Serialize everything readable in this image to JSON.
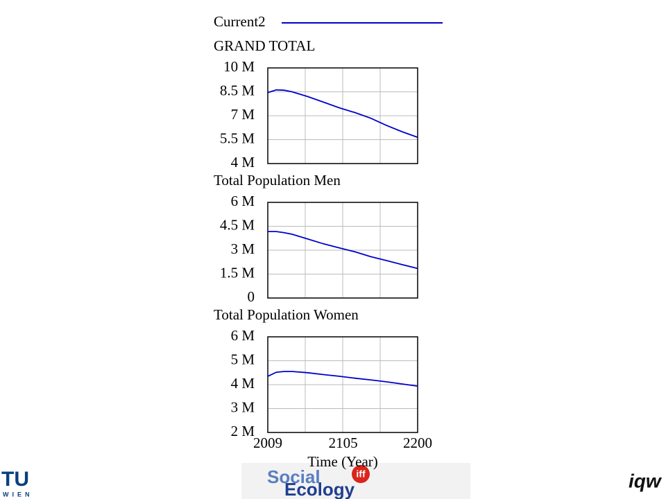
{
  "chart_data": [
    {
      "type": "line",
      "title": "GRAND TOTAL",
      "x": [
        2009,
        2020,
        2030,
        2040,
        2060,
        2080,
        2100,
        2120,
        2140,
        2160,
        2180,
        2200
      ],
      "series": [
        {
          "name": "Current2",
          "color": "#0000cc",
          "values": [
            8450000,
            8620000,
            8600000,
            8500000,
            8200000,
            7850000,
            7500000,
            7200000,
            6850000,
            6400000,
            6000000,
            5650000
          ]
        }
      ],
      "xlim": [
        2009,
        2200
      ],
      "ylim": [
        4000000,
        10000000
      ],
      "yticks": [
        {
          "value": 4000000,
          "label": "4 M"
        },
        {
          "value": 5500000,
          "label": "5.5 M"
        },
        {
          "value": 7000000,
          "label": "7 M"
        },
        {
          "value": 8500000,
          "label": "8.5 M"
        },
        {
          "value": 10000000,
          "label": "10 M"
        }
      ],
      "grid": true
    },
    {
      "type": "line",
      "title": "Total Population Men",
      "x": [
        2009,
        2020,
        2030,
        2040,
        2060,
        2080,
        2100,
        2120,
        2140,
        2160,
        2180,
        2200
      ],
      "series": [
        {
          "color": "#0000cc",
          "values": [
            4170000,
            4170000,
            4100000,
            4000000,
            3700000,
            3400000,
            3150000,
            2900000,
            2600000,
            2350000,
            2100000,
            1850000
          ]
        }
      ],
      "xlim": [
        2009,
        2200
      ],
      "ylim": [
        0,
        6000000
      ],
      "yticks": [
        0,
        {
          "value": 1500000,
          "label": "1.5 M"
        },
        {
          "value": 3000000,
          "label": "3 M"
        },
        {
          "value": 4500000,
          "label": "4.5 M"
        },
        {
          "value": 6000000,
          "label": "6 M"
        }
      ],
      "grid": true
    },
    {
      "type": "line",
      "title": "Total Population Women",
      "x": [
        2009,
        2020,
        2030,
        2040,
        2060,
        2080,
        2100,
        2120,
        2140,
        2160,
        2180,
        2200
      ],
      "series": [
        {
          "color": "#0000cc",
          "values": [
            4350000,
            4520000,
            4550000,
            4550000,
            4500000,
            4420000,
            4350000,
            4270000,
            4200000,
            4120000,
            4030000,
            3940000
          ]
        }
      ],
      "xlim": [
        2009,
        2200
      ],
      "ylim": [
        2000000,
        6000000
      ],
      "yticks": [
        {
          "value": 2000000,
          "label": "2 M"
        },
        {
          "value": 3000000,
          "label": "3 M"
        },
        {
          "value": 4000000,
          "label": "4 M"
        },
        {
          "value": 5000000,
          "label": "5 M"
        },
        {
          "value": 6000000,
          "label": "6 M"
        }
      ],
      "xticks": [
        2009,
        2105,
        2200
      ],
      "xlabel": "Time (Year)",
      "grid": true
    }
  ],
  "footer": {
    "tu": "TU",
    "wien": "WIEN",
    "social": "Social",
    "ecology": "Ecology",
    "iff": "iff",
    "iqw": "iqw"
  }
}
